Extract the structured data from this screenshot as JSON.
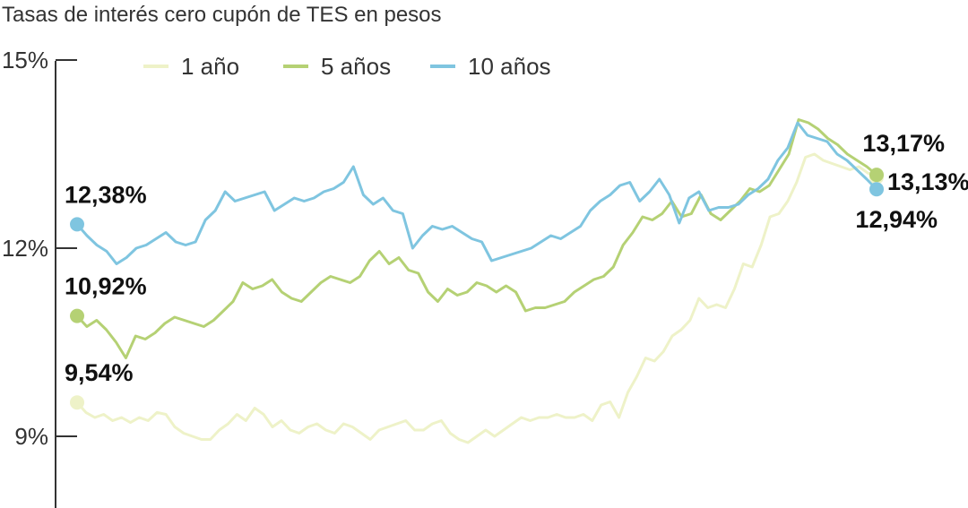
{
  "chart_data": {
    "type": "line",
    "title": "Tasas de interés cero cupón de TES en pesos",
    "yticks": [
      {
        "value": 15,
        "label": "15%"
      },
      {
        "value": 12,
        "label": "12%"
      },
      {
        "value": 9,
        "label": "9%"
      }
    ],
    "ylim": [
      7.9,
      15.1
    ],
    "legend_position": "top",
    "grid": false,
    "axis_color": "#333333",
    "series": [
      {
        "name": "1 año",
        "color": "#eef2c8",
        "start_label": "9,54%",
        "end_label": "13,13%",
        "start_value": 9.54,
        "end_value": 13.13,
        "values": [
          9.54,
          9.38,
          9.3,
          9.35,
          9.25,
          9.3,
          9.22,
          9.3,
          9.25,
          9.38,
          9.35,
          9.15,
          9.05,
          9.0,
          8.95,
          8.95,
          9.1,
          9.2,
          9.35,
          9.25,
          9.45,
          9.35,
          9.15,
          9.25,
          9.1,
          9.05,
          9.15,
          9.2,
          9.1,
          9.05,
          9.2,
          9.15,
          9.05,
          8.95,
          9.1,
          9.15,
          9.2,
          9.25,
          9.1,
          9.1,
          9.2,
          9.25,
          9.05,
          8.95,
          8.9,
          9.0,
          9.1,
          9.0,
          9.1,
          9.2,
          9.3,
          9.25,
          9.3,
          9.3,
          9.35,
          9.3,
          9.3,
          9.35,
          9.25,
          9.5,
          9.55,
          9.3,
          9.7,
          9.95,
          10.25,
          10.2,
          10.35,
          10.6,
          10.7,
          10.85,
          11.2,
          11.05,
          11.1,
          11.05,
          11.35,
          11.75,
          11.7,
          12.05,
          12.5,
          12.55,
          12.75,
          13.05,
          13.45,
          13.5,
          13.4,
          13.35,
          13.3,
          13.25,
          13.3,
          13.2,
          13.13
        ]
      },
      {
        "name": "5 años",
        "color": "#b5d174",
        "start_label": "10,92%",
        "end_label": "13,17%",
        "start_value": 10.92,
        "end_value": 13.17,
        "values": [
          10.92,
          10.75,
          10.85,
          10.7,
          10.5,
          10.25,
          10.6,
          10.55,
          10.65,
          10.8,
          10.9,
          10.85,
          10.8,
          10.75,
          10.85,
          11.0,
          11.15,
          11.45,
          11.35,
          11.4,
          11.5,
          11.3,
          11.2,
          11.15,
          11.3,
          11.45,
          11.55,
          11.5,
          11.45,
          11.55,
          11.8,
          11.95,
          11.75,
          11.85,
          11.65,
          11.6,
          11.3,
          11.15,
          11.35,
          11.25,
          11.3,
          11.45,
          11.4,
          11.3,
          11.4,
          11.3,
          11.0,
          11.05,
          11.05,
          11.1,
          11.15,
          11.3,
          11.4,
          11.5,
          11.55,
          11.7,
          12.05,
          12.25,
          12.5,
          12.45,
          12.55,
          12.75,
          12.5,
          12.55,
          12.85,
          12.55,
          12.45,
          12.6,
          12.75,
          12.95,
          12.9,
          13.0,
          13.25,
          13.5,
          14.05,
          14.0,
          13.9,
          13.75,
          13.65,
          13.5,
          13.4,
          13.3,
          13.17
        ]
      },
      {
        "name": "10 años",
        "color": "#7fc5e0",
        "start_label": "12,38%",
        "end_label": "12,94%",
        "start_value": 12.38,
        "end_value": 12.94,
        "values": [
          12.38,
          12.2,
          12.05,
          11.95,
          11.75,
          11.85,
          12.0,
          12.05,
          12.15,
          12.25,
          12.1,
          12.05,
          12.1,
          12.45,
          12.6,
          12.9,
          12.75,
          12.8,
          12.85,
          12.9,
          12.6,
          12.7,
          12.8,
          12.75,
          12.8,
          12.9,
          12.95,
          13.05,
          13.3,
          12.85,
          12.7,
          12.8,
          12.6,
          12.55,
          12.0,
          12.2,
          12.35,
          12.3,
          12.35,
          12.25,
          12.15,
          12.1,
          11.8,
          11.85,
          11.9,
          11.95,
          12.0,
          12.1,
          12.2,
          12.15,
          12.25,
          12.35,
          12.6,
          12.75,
          12.85,
          13.0,
          13.05,
          12.75,
          12.9,
          13.1,
          12.85,
          12.4,
          12.8,
          12.9,
          12.6,
          12.65,
          12.65,
          12.7,
          12.85,
          12.95,
          13.1,
          13.4,
          13.6,
          14.0,
          13.8,
          13.75,
          13.7,
          13.5,
          13.4,
          13.25,
          13.1,
          12.94
        ]
      }
    ]
  }
}
